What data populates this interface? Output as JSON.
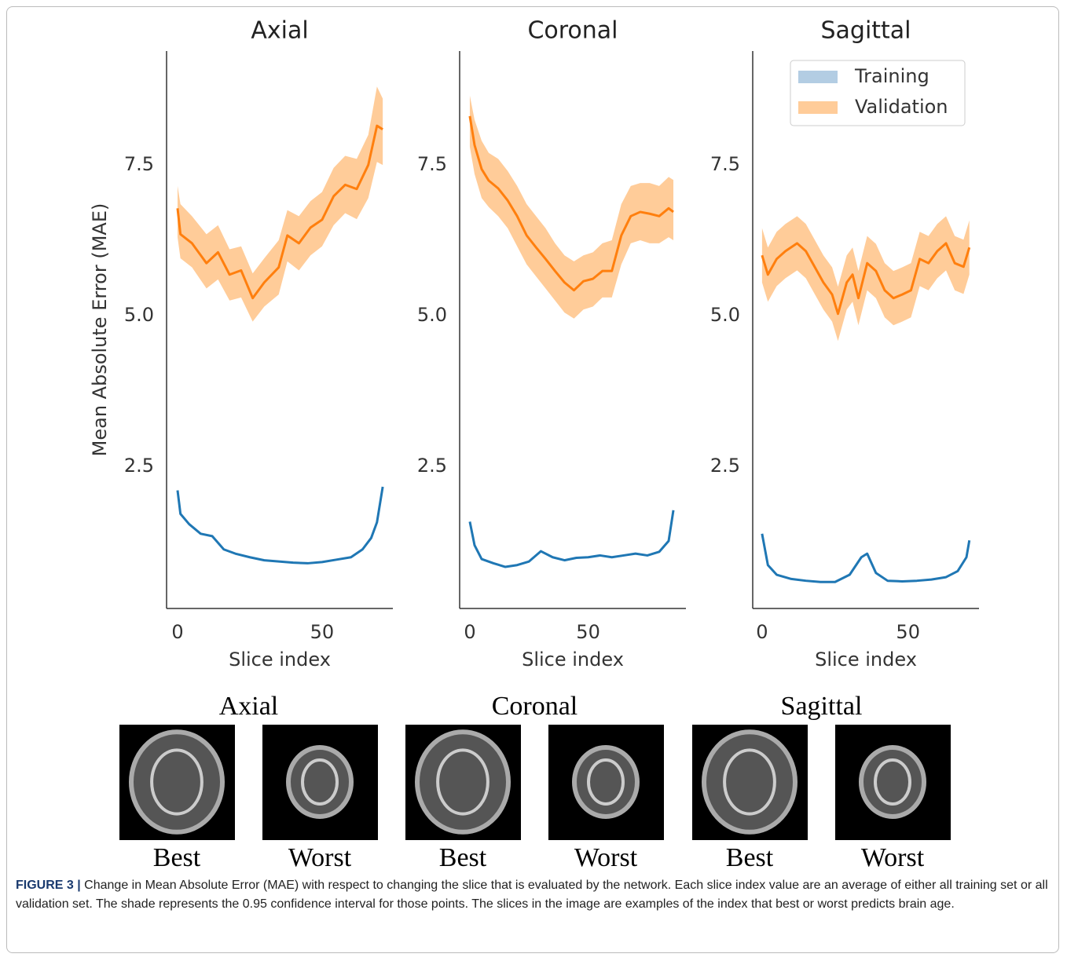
{
  "chart_data": [
    {
      "type": "line",
      "title": "Axial",
      "xlabel": "Slice index",
      "ylabel": "Mean Absolute Error (MAE)",
      "xlim": [
        -3.8,
        74.5
      ],
      "ylim": [
        0.14,
        9.39
      ],
      "xticks": [
        0,
        50
      ],
      "yticks": [
        2.5,
        {
          "value": 5,
          "label": "5.0"
        },
        7.5
      ],
      "series": [
        {
          "color": "#1f77b4",
          "x": [
            0,
            1,
            4,
            8,
            12,
            16,
            20,
            25,
            30,
            35,
            40,
            45,
            50,
            55,
            60,
            64,
            67,
            69,
            71
          ],
          "values": [
            2.1,
            1.71,
            1.54,
            1.38,
            1.34,
            1.12,
            1.05,
            0.99,
            0.94,
            0.92,
            0.9,
            0.89,
            0.91,
            0.95,
            0.99,
            1.12,
            1.31,
            1.57,
            2.16
          ]
        },
        {
          "color": "#ff7f0e",
          "band_color": "#ffcc99",
          "x": [
            0,
            1,
            5,
            10,
            14,
            18,
            22,
            26,
            30,
            35,
            38,
            42,
            46,
            50,
            54,
            58,
            62,
            66,
            69,
            71
          ],
          "values": [
            6.78,
            6.35,
            6.2,
            5.87,
            6.05,
            5.68,
            5.75,
            5.29,
            5.55,
            5.8,
            6.33,
            6.2,
            6.46,
            6.59,
            6.98,
            7.17,
            7.1,
            7.5,
            8.15,
            8.09
          ],
          "upper": [
            7.15,
            6.85,
            6.65,
            6.35,
            6.5,
            6.1,
            6.15,
            5.7,
            5.95,
            6.25,
            6.75,
            6.65,
            6.9,
            7.05,
            7.45,
            7.65,
            7.6,
            8.0,
            8.8,
            8.6
          ],
          "lower": [
            6.3,
            5.95,
            5.8,
            5.45,
            5.6,
            5.25,
            5.3,
            4.9,
            5.15,
            5.35,
            5.9,
            5.75,
            6.0,
            6.15,
            6.5,
            6.7,
            6.6,
            6.95,
            7.55,
            7.5
          ]
        }
      ]
    },
    {
      "type": "line",
      "title": "Coronal",
      "xlabel": "Slice index",
      "xlim": [
        -4.3,
        91.3
      ],
      "ylim": [
        0.14,
        9.39
      ],
      "xticks": [
        0,
        50
      ],
      "yticks": [
        2.5,
        {
          "value": 5,
          "label": "5.0"
        },
        7.5
      ],
      "series": [
        {
          "color": "#1f77b4",
          "x": [
            0,
            2,
            5,
            10,
            15,
            20,
            25,
            30,
            35,
            40,
            45,
            50,
            55,
            60,
            65,
            70,
            75,
            80,
            84,
            86
          ],
          "values": [
            1.58,
            1.19,
            0.96,
            0.89,
            0.83,
            0.86,
            0.92,
            1.09,
            0.99,
            0.94,
            0.98,
            0.99,
            1.02,
            0.99,
            1.02,
            1.05,
            1.02,
            1.08,
            1.26,
            1.77
          ]
        },
        {
          "color": "#ff7f0e",
          "band_color": "#ffcc99",
          "x": [
            0,
            2,
            5,
            8,
            12,
            16,
            20,
            24,
            28,
            32,
            36,
            40,
            44,
            48,
            52,
            56,
            60,
            64,
            68,
            72,
            76,
            80,
            84,
            86
          ],
          "values": [
            8.31,
            7.83,
            7.43,
            7.24,
            7.11,
            6.91,
            6.65,
            6.33,
            6.13,
            5.94,
            5.74,
            5.55,
            5.42,
            5.57,
            5.61,
            5.74,
            5.74,
            6.33,
            6.65,
            6.72,
            6.69,
            6.65,
            6.78,
            6.72
          ],
          "upper": [
            8.65,
            8.25,
            7.9,
            7.7,
            7.6,
            7.4,
            7.15,
            6.85,
            6.65,
            6.45,
            6.2,
            6.0,
            5.9,
            6.0,
            6.05,
            6.2,
            6.25,
            6.85,
            7.15,
            7.2,
            7.2,
            7.15,
            7.3,
            7.25
          ],
          "lower": [
            7.8,
            7.35,
            6.95,
            6.8,
            6.65,
            6.45,
            6.15,
            5.85,
            5.65,
            5.45,
            5.25,
            5.05,
            4.95,
            5.1,
            5.15,
            5.3,
            5.3,
            5.85,
            6.2,
            6.25,
            6.2,
            6.2,
            6.3,
            6.25
          ]
        }
      ]
    },
    {
      "type": "line",
      "title": "Sagittal",
      "xlabel": "Slice index",
      "legend": "upper right",
      "xlim": [
        -3.2,
        74.3
      ],
      "ylim": [
        0.14,
        9.39
      ],
      "xticks": [
        0,
        50
      ],
      "yticks": [
        2.5,
        {
          "value": 5,
          "label": "5.0"
        },
        7.5
      ],
      "series": [
        {
          "name": "Training",
          "color": "#1f77b4",
          "band_color": "#b3cde3",
          "x": [
            0,
            2,
            5,
            10,
            15,
            20,
            25,
            30,
            34,
            36,
            39,
            43,
            48,
            53,
            58,
            63,
            67,
            70,
            71
          ],
          "values": [
            1.38,
            0.86,
            0.7,
            0.63,
            0.6,
            0.58,
            0.58,
            0.7,
            0.99,
            1.05,
            0.73,
            0.6,
            0.59,
            0.6,
            0.62,
            0.66,
            0.76,
            0.99,
            1.27
          ]
        },
        {
          "name": "Validation",
          "color": "#ff7f0e",
          "band_color": "#ffcc99",
          "x": [
            0,
            2,
            5,
            8,
            12,
            15,
            18,
            21,
            24,
            26,
            29,
            31,
            33,
            36,
            39,
            42,
            45,
            48,
            51,
            54,
            57,
            60,
            63,
            66,
            69,
            71
          ],
          "values": [
            6.0,
            5.68,
            5.94,
            6.07,
            6.2,
            6.07,
            5.81,
            5.55,
            5.35,
            5.03,
            5.55,
            5.68,
            5.29,
            5.87,
            5.74,
            5.42,
            5.29,
            5.35,
            5.42,
            5.94,
            5.87,
            6.07,
            6.2,
            5.87,
            5.81,
            6.13
          ],
          "upper": [
            6.45,
            6.13,
            6.39,
            6.52,
            6.65,
            6.52,
            6.26,
            6.0,
            5.8,
            5.48,
            6.0,
            6.13,
            5.74,
            6.32,
            6.19,
            5.87,
            5.74,
            5.8,
            5.87,
            6.39,
            6.32,
            6.52,
            6.65,
            6.32,
            6.26,
            6.58
          ],
          "lower": [
            5.55,
            5.23,
            5.49,
            5.62,
            5.75,
            5.62,
            5.36,
            5.1,
            4.9,
            4.58,
            5.1,
            5.23,
            4.84,
            5.42,
            5.29,
            4.97,
            4.84,
            4.9,
            4.97,
            5.49,
            5.42,
            5.62,
            5.75,
            5.42,
            5.36,
            5.68
          ]
        }
      ]
    }
  ],
  "images": {
    "groups": [
      {
        "title": "Axial",
        "labels": [
          "Best",
          "Worst"
        ]
      },
      {
        "title": "Coronal",
        "labels": [
          "Best",
          "Worst"
        ]
      },
      {
        "title": "Sagittal",
        "labels": [
          "Best",
          "Worst"
        ]
      }
    ]
  },
  "caption": {
    "label": "FIGURE 3 |",
    "text": "Change in Mean Absolute Error (MAE) with respect to changing the slice that is evaluated by the network. Each slice index value are an average of either all training set or all validation set. The shade represents the 0.95 confidence interval for those points. The slices in the image are examples of the index that best or worst predicts brain age."
  }
}
